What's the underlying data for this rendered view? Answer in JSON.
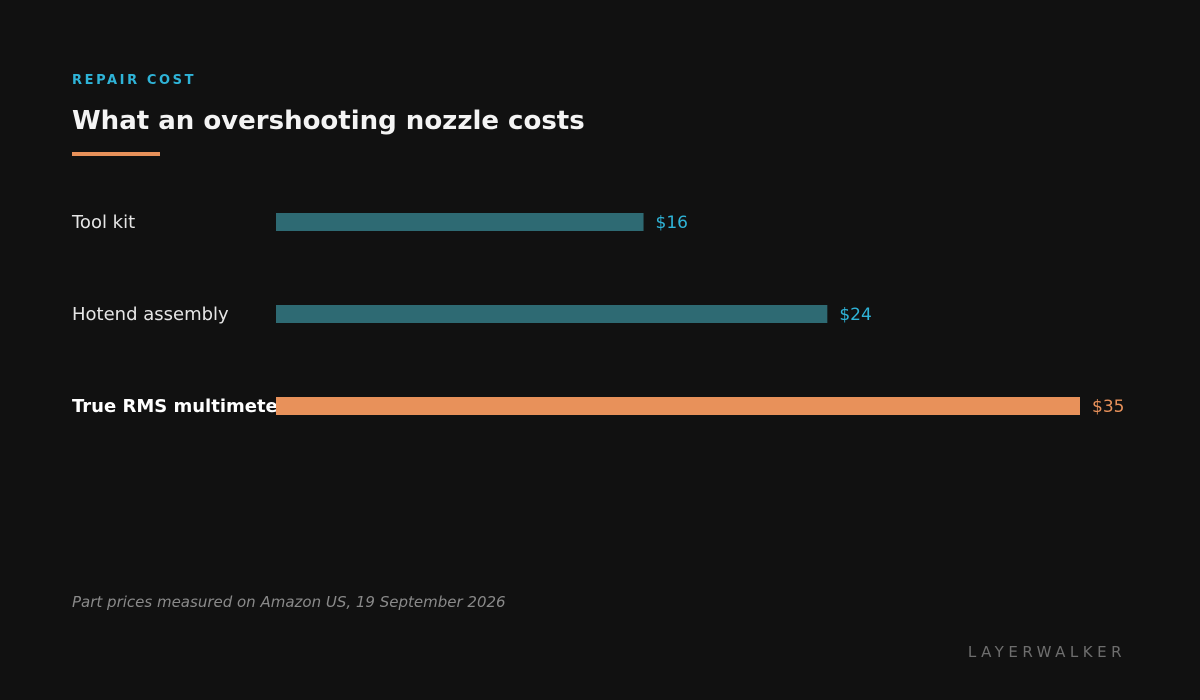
{
  "header": {
    "kicker": "REPAIR COST",
    "title": "What an overshooting nozzle costs"
  },
  "chart_data": {
    "type": "bar",
    "orientation": "horizontal",
    "categories": [
      "Tool kit",
      "Hotend assembly",
      "True RMS multimeter"
    ],
    "values": [
      16,
      24,
      35
    ],
    "value_labels": [
      "$16",
      "$24",
      "$35"
    ],
    "highlighted": "True RMS multimeter",
    "xlim": [
      0,
      35
    ],
    "grid": false
  },
  "footer": {
    "note": "Part prices measured on Amazon US, 19 September 2026",
    "brand": "LAYERWALKER"
  },
  "colors": {
    "background": "#111111",
    "accent": "#2fb4d8",
    "bar": "#2e6a73",
    "highlight": "#e8915a",
    "label": "#e6e6e6",
    "highlight_label": "#ffffff"
  }
}
